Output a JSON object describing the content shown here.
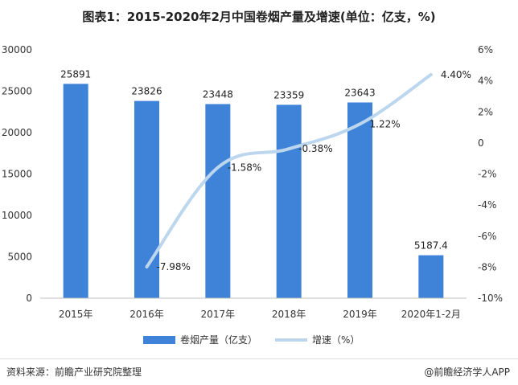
{
  "chart_data": {
    "type": "bar",
    "title": "图表1：2015-2020年2月中国卷烟产量及增速(单位：亿支，%)",
    "categories": [
      "2015年",
      "2016年",
      "2017年",
      "2018年",
      "2019年",
      "2020年1-2月"
    ],
    "series": [
      {
        "name": "卷烟产量（亿支）",
        "type": "bar",
        "axis": "left",
        "color": "#3f83d8",
        "values": [
          25891,
          23826,
          23448,
          23359,
          23643,
          5187.4
        ],
        "labels": [
          "25891",
          "23826",
          "23448",
          "23359",
          "23643",
          "5187.4"
        ]
      },
      {
        "name": "增速（%）",
        "type": "line",
        "axis": "right",
        "color": "#bcd6ee",
        "values": [
          null,
          -7.98,
          -1.58,
          -0.38,
          1.22,
          4.4
        ],
        "labels": [
          "",
          "-7.98%",
          "-1.58%",
          "-0.38%",
          "1.22%",
          "4.40%"
        ]
      }
    ],
    "y_left": {
      "min": 0,
      "max": 30000,
      "ticks": [
        0,
        5000,
        10000,
        15000,
        20000,
        25000,
        30000
      ],
      "tick_labels": [
        "0",
        "5000",
        "10000",
        "15000",
        "20000",
        "25000",
        "30000"
      ]
    },
    "y_right": {
      "min": -10,
      "max": 6,
      "ticks": [
        -10,
        -8,
        -6,
        -4,
        -2,
        0,
        2,
        4,
        6
      ],
      "tick_labels": [
        "-10%",
        "-8%",
        "-6%",
        "-4%",
        "-2%",
        "0",
        "2%",
        "4%",
        "6%"
      ]
    },
    "legend_position": "bottom-center"
  },
  "footer": {
    "source": "资料来源：前瞻产业研究院整理",
    "brand": "@前瞻经济学人APP"
  }
}
